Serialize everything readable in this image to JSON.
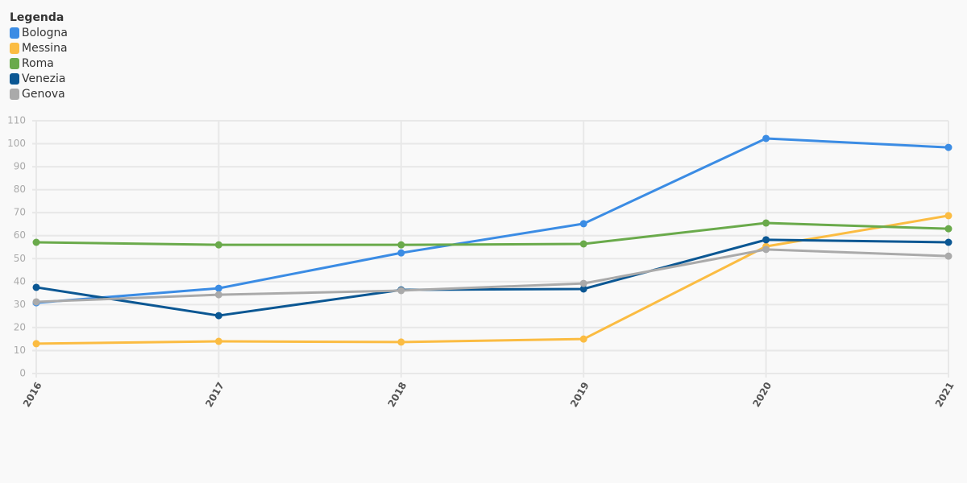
{
  "chart_data": {
    "type": "line",
    "legend_title": "Legenda",
    "legend": "top-left",
    "grid": true,
    "categories": [
      "2016",
      "2017",
      "2018",
      "2019",
      "2020",
      "2021"
    ],
    "series": [
      {
        "name": "Bologna",
        "color": "#3b8ce4",
        "values": [
          30.8,
          37.1,
          52.5,
          65.2,
          102.3,
          98.4
        ]
      },
      {
        "name": "Messina",
        "color": "#fbbc42",
        "values": [
          13,
          14,
          13.7,
          15,
          55.3,
          68.7
        ]
      },
      {
        "name": "Roma",
        "color": "#6aaa4b",
        "values": [
          57.1,
          56,
          56,
          56.4,
          65.5,
          63
        ]
      },
      {
        "name": "Venezia",
        "color": "#0b5793",
        "values": [
          37.5,
          25.2,
          36.4,
          36.8,
          58.2,
          57.1
        ]
      },
      {
        "name": "Genova",
        "color": "#aaaaaa",
        "values": [
          31.2,
          34.3,
          36.1,
          39.2,
          54,
          51.1
        ]
      }
    ],
    "ylim": [
      0,
      110
    ],
    "yticks": [
      0,
      10,
      20,
      30,
      40,
      50,
      60,
      70,
      80,
      90,
      100,
      110
    ]
  }
}
